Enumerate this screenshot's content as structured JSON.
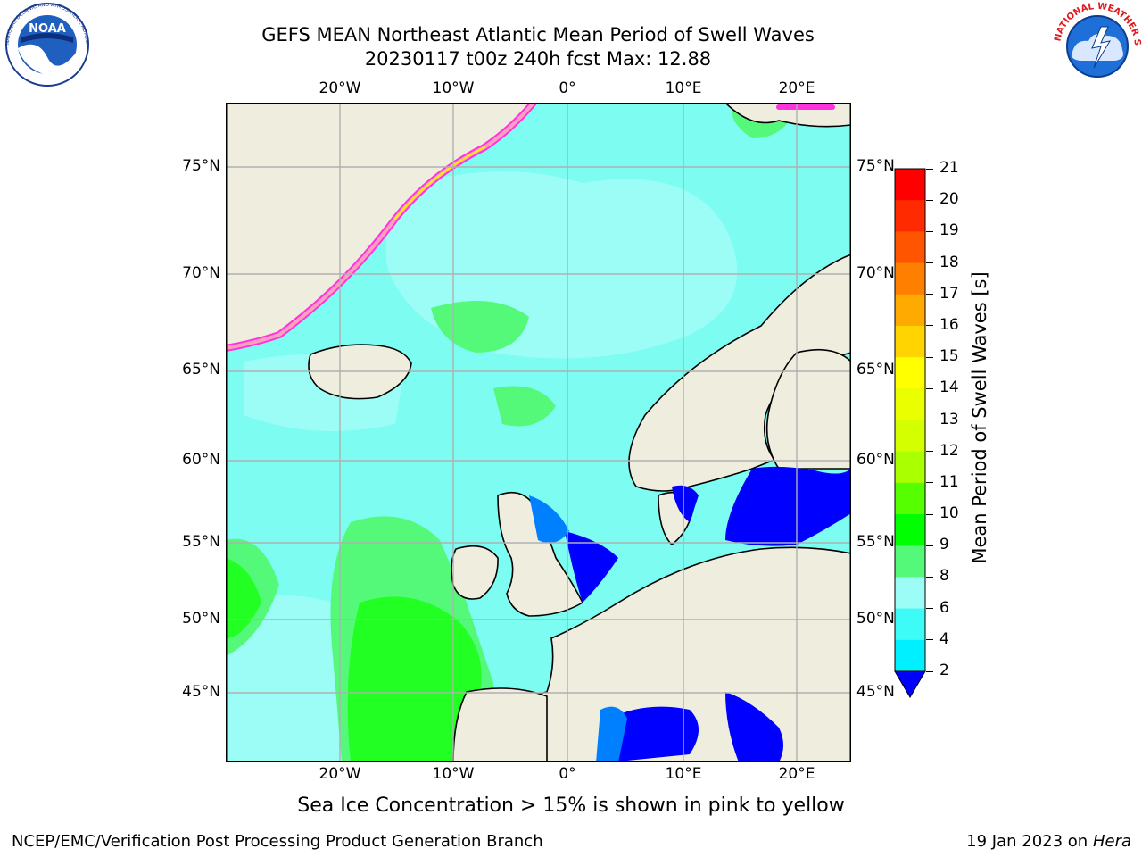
{
  "header": {
    "title_line1": "GEFS MEAN Northeast Atlantic Mean Period of Swell Waves",
    "title_line2": "20230117 t00z 240h fcst   Max: 12.88"
  },
  "logos": {
    "left": {
      "text": "NOAA",
      "ring_text": "NATIONAL OCEANIC AND ATMOSPHERIC ADMINISTRATION · U.S. DEPARTMENT OF COMMERCE"
    },
    "right": {
      "ring_text": "NATIONAL WEATHER SERVICE"
    }
  },
  "map": {
    "lon_labels": [
      "20°W",
      "10°W",
      "0°",
      "10°E",
      "20°E"
    ],
    "lat_labels": [
      "75°N",
      "70°N",
      "65°N",
      "60°N",
      "55°N",
      "50°N",
      "45°N"
    ],
    "colors": {
      "ocean_base": "#7dfcf2",
      "land": "#efedde",
      "ice_edge": [
        "#ff33dd",
        "#ff9fbf",
        "#ffee00"
      ],
      "grid": "#b0b0b0"
    }
  },
  "colorbar": {
    "label": "Mean Period of Swell Waves [s]",
    "ticks": [
      "21",
      "20",
      "19",
      "18",
      "17",
      "16",
      "15",
      "14",
      "13",
      "12",
      "11",
      "10",
      "9",
      "8",
      "6",
      "4",
      "2"
    ],
    "colors": [
      "#ff0000",
      "#ff2a00",
      "#ff5500",
      "#ff8000",
      "#ffaa00",
      "#ffd400",
      "#ffff00",
      "#eaff00",
      "#d4ff00",
      "#aaff00",
      "#55ff00",
      "#00ff00",
      "#55f97a",
      "#9cfdf6",
      "#3dfcf8",
      "#00f0ff",
      "#0080ff",
      "#0000ff"
    ]
  },
  "footer": {
    "note": "Sea Ice Concentration > 15% is shown in pink to yellow",
    "credit_left": "NCEP/EMC/Verification Post Processing Product Generation Branch",
    "credit_right_prefix": "19 Jan 2023 on ",
    "credit_right_machine": "Hera"
  }
}
